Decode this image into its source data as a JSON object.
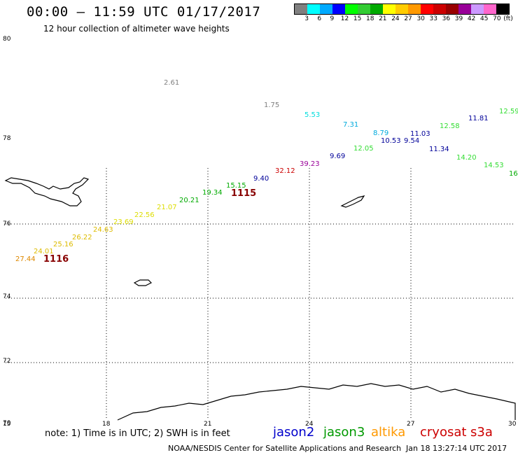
{
  "title": "00:00 – 11:59 UTC 01/17/2017",
  "subtitle": "12 hour collection of altimeter wave heights",
  "color_scale": {
    "unit": "(ft)",
    "colors": [
      "#808080",
      "#00ffff",
      "#00aaff",
      "#0000ff",
      "#00ff00",
      "#33cc33",
      "#00aa00",
      "#ffff00",
      "#ffcc00",
      "#ff9900",
      "#ff0000",
      "#cc0000",
      "#990000",
      "#990099",
      "#cc99ff",
      "#ff66cc",
      "#000000"
    ],
    "labels": [
      "3",
      "6",
      "9",
      "12",
      "15",
      "18",
      "21",
      "24",
      "27",
      "30",
      "33",
      "36",
      "39",
      "42",
      "45",
      "70"
    ]
  },
  "axes": {
    "lat_labels": [
      "80",
      "78",
      "76",
      "74",
      "72",
      "70"
    ],
    "lon_labels": [
      "15",
      "18",
      "21",
      "24",
      "27",
      "30"
    ]
  },
  "observations": [
    {
      "text": "2.61",
      "color": "#808080"
    },
    {
      "text": "1.75",
      "color": "#808080"
    },
    {
      "text": "5.53",
      "color": "#00dddd"
    },
    {
      "text": "7.31",
      "color": "#00aadd"
    },
    {
      "text": "8.79",
      "color": "#00aadd"
    },
    {
      "text": "10.53",
      "color": "#000099"
    },
    {
      "text": "9.54",
      "color": "#000099"
    },
    {
      "text": "11.03",
      "color": "#000099"
    },
    {
      "text": "12.58",
      "color": "#33dd33"
    },
    {
      "text": "11.81",
      "color": "#000099"
    },
    {
      "text": "12.59",
      "color": "#33dd33"
    },
    {
      "text": "11.34",
      "color": "#000099"
    },
    {
      "text": "14.20",
      "color": "#33dd33"
    },
    {
      "text": "14.53",
      "color": "#33dd33"
    },
    {
      "text": "16",
      "color": "#00aa00"
    },
    {
      "text": "12.05",
      "color": "#33dd33"
    },
    {
      "text": "9.69",
      "color": "#000099"
    },
    {
      "text": "39.23",
      "color": "#990099"
    },
    {
      "text": "32.12",
      "color": "#cc0000"
    },
    {
      "text": "9.40",
      "color": "#000099"
    },
    {
      "text": "15.15",
      "color": "#00aa00"
    },
    {
      "text": "19.34",
      "color": "#00aa00"
    },
    {
      "text": "20.21",
      "color": "#00aa00"
    },
    {
      "text": "21.07",
      "color": "#dddd00"
    },
    {
      "text": "22.56",
      "color": "#dddd00"
    },
    {
      "text": "23.69",
      "color": "#dddd00"
    },
    {
      "text": "24.63",
      "color": "#ddbb00"
    },
    {
      "text": "26.22",
      "color": "#ddbb00"
    },
    {
      "text": "25.16",
      "color": "#ddbb00"
    },
    {
      "text": "24.01",
      "color": "#ddbb00"
    },
    {
      "text": "27.44",
      "color": "#dd8800"
    }
  ],
  "pass_labels": [
    {
      "text": "1115",
      "color": "#880000"
    },
    {
      "text": "1116",
      "color": "#880000"
    }
  ],
  "note": "note: 1) Time is in UTC; 2) SWH is in feet",
  "legend": [
    {
      "text": "jason2",
      "color": "#0000cc"
    },
    {
      "text": "jason3",
      "color": "#009900"
    },
    {
      "text": "altika",
      "color": "#ff9900"
    },
    {
      "text": "cryosat",
      "color": "#cc0000"
    },
    {
      "text": "s3a",
      "color": "#cc0000"
    }
  ],
  "credit": "NOAA/NESDIS Center for Satellite Applications and Research",
  "credit_date": "Jan 18 13:27:14 UTC 2017"
}
